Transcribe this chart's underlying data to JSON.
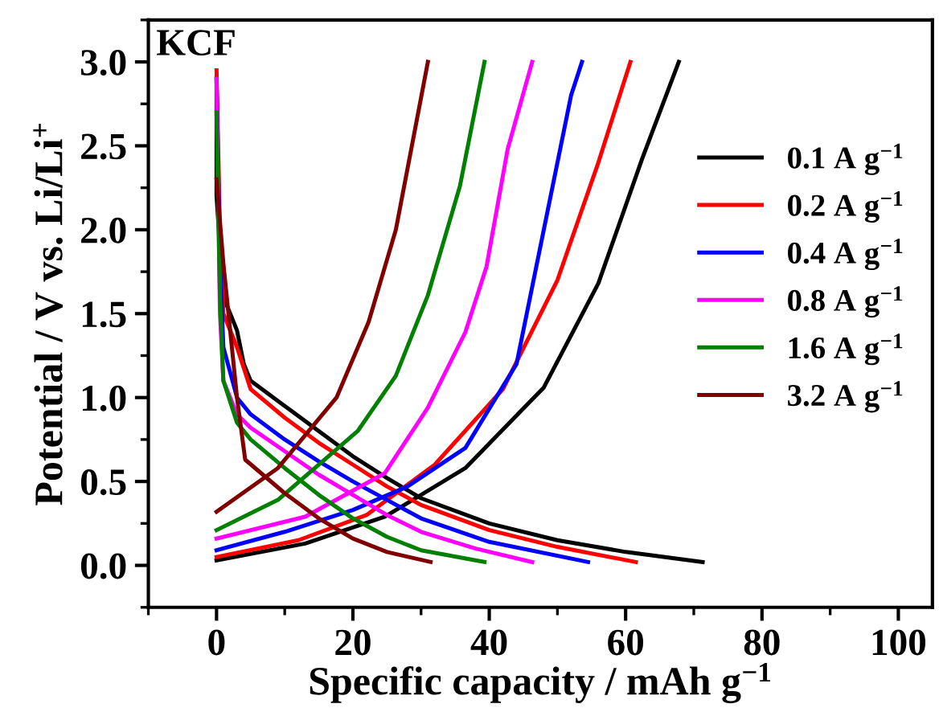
{
  "chart_data": {
    "type": "line",
    "xlabel": "Specific capacity / mAh g$^{−1}$",
    "ylabel": "Potential / V vs. Li/Li$^{+}$",
    "annotations": [
      "KCF"
    ],
    "xlim": [
      -10,
      105
    ],
    "ylim": [
      -0.25,
      3.25
    ],
    "xticks": [
      0,
      20,
      40,
      60,
      80,
      100
    ],
    "yticks": [
      {
        "value": 0,
        "label": "0.0"
      },
      {
        "value": 0.5,
        "label": "0.5"
      },
      {
        "value": 1,
        "label": "1.0"
      },
      {
        "value": 1.5,
        "label": "1.5"
      },
      {
        "value": 2,
        "label": "2.0"
      },
      {
        "value": 2.5,
        "label": "2.5"
      },
      {
        "value": 3,
        "label": "3.0"
      }
    ],
    "legend": "right",
    "marker": "none",
    "line_style": "solid",
    "series": [
      {
        "name": "0.1 A g$^{−1}$",
        "color": "#000000",
        "x": [
          0,
          0,
          1,
          2,
          3,
          4,
          5,
          10,
          15,
          20,
          25,
          30,
          40,
          50,
          60,
          71.3
        ],
        "values": [
          2.9,
          2.2,
          1.6,
          1.5,
          1.4,
          1.2,
          1.1,
          0.95,
          0.8,
          0.65,
          0.52,
          0.4,
          0.25,
          0.15,
          0.08,
          0.02
        ]
      },
      {
        "color": "#000000",
        "x": [
          0,
          13,
          24.7,
          36.5,
          48,
          56,
          62.4,
          67.8
        ],
        "values": [
          0.03,
          0.13,
          0.29,
          0.58,
          1.06,
          1.68,
          2.42,
          3.0
        ]
      },
      {
        "name": "0.2 A g$^{−1}$",
        "color": "#ff0000",
        "x": [
          0,
          0.5,
          1,
          3,
          5,
          10,
          15,
          20,
          25,
          30,
          40,
          50,
          61.5
        ],
        "values": [
          2.95,
          2.0,
          1.5,
          1.3,
          1.05,
          0.88,
          0.73,
          0.6,
          0.47,
          0.36,
          0.21,
          0.11,
          0.02
        ]
      },
      {
        "color": "#ff0000",
        "x": [
          0,
          12,
          22,
          32,
          42,
          50,
          56,
          60.7
        ],
        "values": [
          0.05,
          0.15,
          0.3,
          0.6,
          1.05,
          1.7,
          2.4,
          3.0
        ]
      },
      {
        "name": "0.4 A g$^{−1}$",
        "color": "#0000ff",
        "x": [
          0,
          0.5,
          1,
          3,
          5,
          10,
          15,
          20,
          25,
          30,
          40,
          54.5
        ],
        "values": [
          2.9,
          1.8,
          1.3,
          1.0,
          0.9,
          0.75,
          0.62,
          0.5,
          0.39,
          0.28,
          0.14,
          0.02
        ]
      },
      {
        "color": "#0000ff",
        "x": [
          0,
          10,
          20,
          28,
          36.5,
          44,
          46.5,
          48.5,
          52,
          53.6
        ],
        "values": [
          0.09,
          0.2,
          0.33,
          0.47,
          0.7,
          1.2,
          1.7,
          2.1,
          2.8,
          3.0
        ]
      },
      {
        "name": "0.8 A g$^{−1}$",
        "color": "#ff00ff",
        "x": [
          0,
          0.5,
          1,
          3,
          5,
          10,
          15,
          20,
          25,
          30,
          38,
          46.3
        ],
        "values": [
          2.9,
          1.5,
          1.1,
          0.9,
          0.82,
          0.68,
          0.54,
          0.42,
          0.3,
          0.2,
          0.1,
          0.02
        ]
      },
      {
        "color": "#ff00ff",
        "x": [
          0,
          13,
          24.7,
          31,
          36.5,
          39.6,
          42.7,
          46.3
        ],
        "values": [
          0.16,
          0.29,
          0.55,
          0.94,
          1.39,
          1.78,
          2.48,
          3.0
        ]
      },
      {
        "name": "1.6 A g$^{−1}$",
        "color": "#008000",
        "x": [
          0,
          0.5,
          1,
          3,
          5,
          10,
          15,
          20,
          25,
          30,
          39.3
        ],
        "values": [
          2.7,
          1.6,
          1.1,
          0.85,
          0.75,
          0.58,
          0.42,
          0.28,
          0.17,
          0.09,
          0.02
        ]
      },
      {
        "color": "#008000",
        "x": [
          0,
          9,
          20.7,
          26.3,
          31,
          35.7,
          39.3
        ],
        "values": [
          0.21,
          0.39,
          0.8,
          1.13,
          1.61,
          2.26,
          3.0
        ]
      },
      {
        "name": "3.2 A g$^{−1}$",
        "color": "#800000",
        "x": [
          0,
          1,
          2,
          3,
          4.2,
          10,
          15,
          20,
          25,
          31.4
        ],
        "values": [
          2.3,
          1.8,
          1.4,
          1.0,
          0.63,
          0.43,
          0.28,
          0.16,
          0.08,
          0.02
        ]
      },
      {
        "color": "#800000",
        "x": [
          0,
          9,
          17.6,
          22.3,
          26.3,
          31
        ],
        "values": [
          0.32,
          0.58,
          1.0,
          1.45,
          2.0,
          3.0
        ]
      }
    ]
  }
}
